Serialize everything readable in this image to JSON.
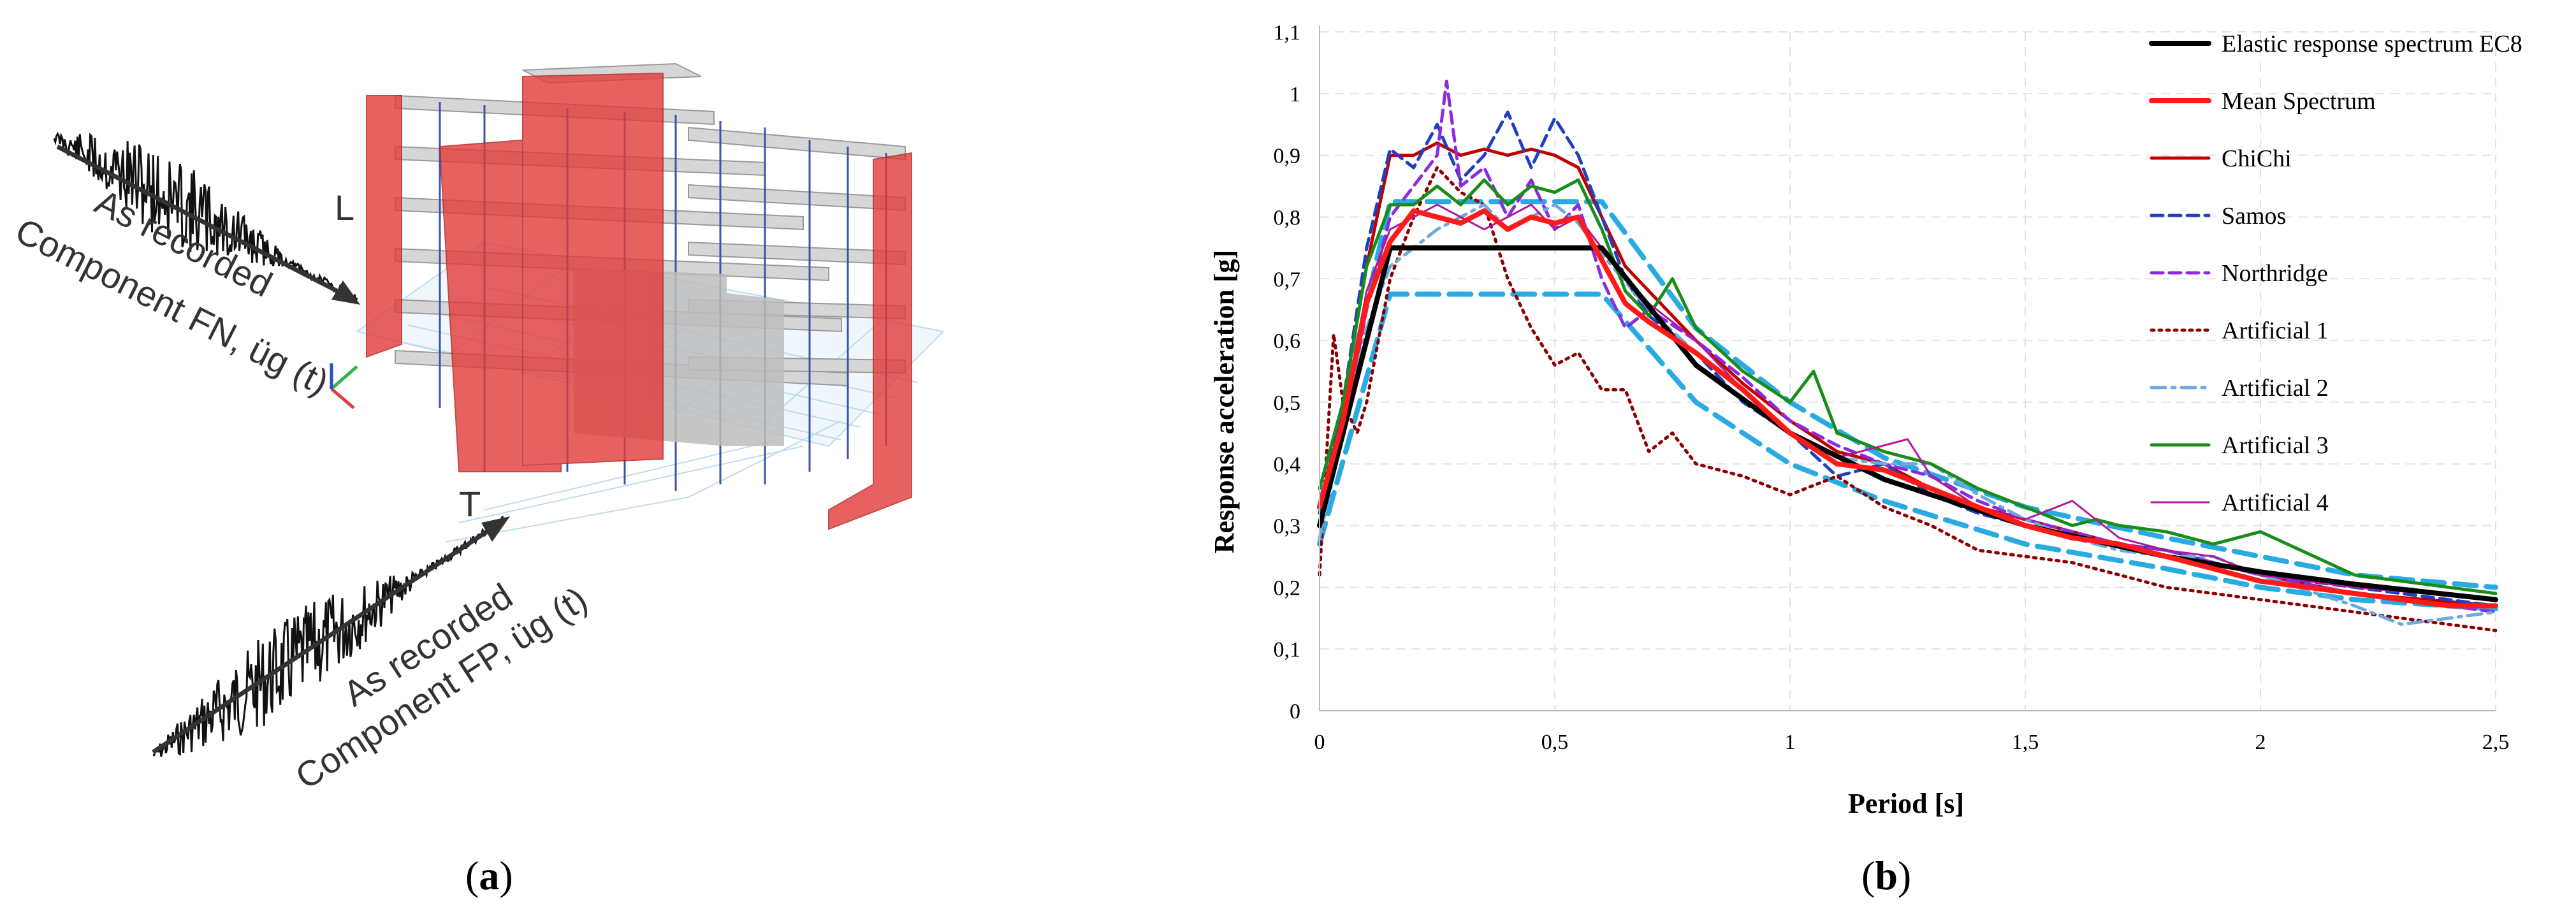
{
  "panel_labels": {
    "a": "a",
    "b": "b"
  },
  "illustration": {
    "label_l": "L",
    "label_t": "T",
    "fn_line1": "As recorded",
    "fn_line2": "Component FN, üg (t)",
    "fp_line1": "As recorded",
    "fp_line2": "Component FP, üg (t)"
  },
  "chart_data": {
    "type": "line",
    "title": "",
    "xlabel": "Period [s]",
    "ylabel": "Response acceleration [g]",
    "xlim": [
      0,
      2.5
    ],
    "ylim": [
      0,
      1.1
    ],
    "xticks": [
      0,
      0.5,
      1,
      1.5,
      2,
      2.5
    ],
    "xtick_labels": [
      "0",
      "0,5",
      "1",
      "1,5",
      "2",
      "2,5"
    ],
    "yticks": [
      0,
      0.1,
      0.2,
      0.3,
      0.4,
      0.5,
      0.6,
      0.7,
      0.8,
      0.9,
      1.0,
      1.1
    ],
    "ytick_labels": [
      "0",
      "0,1",
      "0,2",
      "0,3",
      "0,4",
      "0,5",
      "0,6",
      "0,7",
      "0,8",
      "0,9",
      "1",
      "1,1"
    ],
    "grid": true,
    "legend_position": "top-right",
    "series": [
      {
        "name": "Elastic response spectrum EC8",
        "color": "#000000",
        "style": "solid",
        "weight": "thick",
        "x": [
          0,
          0.15,
          0.6,
          0.8,
          1.0,
          1.2,
          1.5,
          1.8,
          2.0,
          2.2,
          2.5
        ],
        "y": [
          0.3,
          0.75,
          0.75,
          0.56,
          0.45,
          0.375,
          0.3,
          0.25,
          0.225,
          0.205,
          0.18
        ]
      },
      {
        "name": "Mean Spectrum",
        "color": "#ff1a1a",
        "style": "solid",
        "weight": "thick",
        "x": [
          0,
          0.05,
          0.1,
          0.15,
          0.2,
          0.25,
          0.3,
          0.35,
          0.4,
          0.45,
          0.5,
          0.55,
          0.6,
          0.65,
          0.7,
          0.8,
          0.9,
          1.0,
          1.1,
          1.2,
          1.3,
          1.4,
          1.5,
          1.6,
          1.7,
          1.8,
          1.9,
          2.0,
          2.1,
          2.2,
          2.3,
          2.4,
          2.5
        ],
        "y": [
          0.33,
          0.47,
          0.66,
          0.76,
          0.81,
          0.8,
          0.79,
          0.81,
          0.78,
          0.8,
          0.79,
          0.8,
          0.73,
          0.66,
          0.63,
          0.58,
          0.52,
          0.45,
          0.4,
          0.39,
          0.36,
          0.33,
          0.3,
          0.28,
          0.27,
          0.25,
          0.23,
          0.21,
          0.2,
          0.19,
          0.18,
          0.17,
          0.17
        ]
      },
      {
        "name": "ChiChi",
        "color": "#c00000",
        "style": "solid",
        "weight": "medium",
        "x": [
          0,
          0.05,
          0.1,
          0.15,
          0.2,
          0.25,
          0.3,
          0.35,
          0.4,
          0.45,
          0.5,
          0.55,
          0.6,
          0.65,
          0.7,
          0.8,
          0.9,
          1.0,
          1.1,
          1.2,
          1.3,
          1.4,
          1.5,
          1.6,
          1.7,
          1.8,
          1.9,
          2.0,
          2.2,
          2.5
        ],
        "y": [
          0.3,
          0.5,
          0.72,
          0.9,
          0.9,
          0.92,
          0.9,
          0.91,
          0.9,
          0.91,
          0.9,
          0.88,
          0.8,
          0.72,
          0.68,
          0.6,
          0.53,
          0.47,
          0.42,
          0.4,
          0.36,
          0.33,
          0.31,
          0.29,
          0.27,
          0.25,
          0.24,
          0.22,
          0.19,
          0.17
        ]
      },
      {
        "name": "Samos",
        "color": "#1f3fbf",
        "style": "dashed",
        "weight": "medium",
        "x": [
          0,
          0.05,
          0.1,
          0.15,
          0.2,
          0.25,
          0.3,
          0.35,
          0.4,
          0.45,
          0.5,
          0.55,
          0.6,
          0.65,
          0.7,
          0.8,
          0.9,
          1.0,
          1.1,
          1.2,
          1.3,
          1.4,
          1.5,
          1.6,
          1.7,
          1.8,
          1.9,
          2.0,
          2.2,
          2.5
        ],
        "y": [
          0.32,
          0.5,
          0.75,
          0.91,
          0.88,
          0.95,
          0.86,
          0.9,
          0.97,
          0.88,
          0.96,
          0.9,
          0.8,
          0.7,
          0.64,
          0.58,
          0.5,
          0.45,
          0.38,
          0.4,
          0.35,
          0.32,
          0.3,
          0.28,
          0.27,
          0.26,
          0.24,
          0.22,
          0.2,
          0.17
        ]
      },
      {
        "name": "Northridge",
        "color": "#8a2be2",
        "style": "dashed",
        "weight": "medium",
        "x": [
          0,
          0.05,
          0.1,
          0.15,
          0.2,
          0.25,
          0.27,
          0.3,
          0.35,
          0.4,
          0.45,
          0.5,
          0.55,
          0.6,
          0.65,
          0.7,
          0.8,
          0.9,
          1.0,
          1.1,
          1.2,
          1.3,
          1.4,
          1.5,
          1.6,
          1.7,
          1.8,
          1.9,
          2.0,
          2.2,
          2.5
        ],
        "y": [
          0.3,
          0.45,
          0.65,
          0.8,
          0.85,
          0.9,
          1.02,
          0.85,
          0.88,
          0.8,
          0.86,
          0.78,
          0.82,
          0.7,
          0.62,
          0.65,
          0.6,
          0.54,
          0.47,
          0.43,
          0.4,
          0.38,
          0.34,
          0.31,
          0.29,
          0.27,
          0.26,
          0.24,
          0.22,
          0.19,
          0.16
        ]
      },
      {
        "name": "Artificial 1",
        "color": "#8b0000",
        "style": "dotted",
        "weight": "medium",
        "x": [
          0,
          0.03,
          0.05,
          0.08,
          0.1,
          0.15,
          0.2,
          0.25,
          0.3,
          0.35,
          0.4,
          0.45,
          0.5,
          0.55,
          0.6,
          0.65,
          0.7,
          0.75,
          0.8,
          0.9,
          1.0,
          1.1,
          1.2,
          1.3,
          1.4,
          1.5,
          1.6,
          1.7,
          1.8,
          1.9,
          2.0,
          2.2,
          2.4,
          2.5
        ],
        "y": [
          0.22,
          0.61,
          0.5,
          0.45,
          0.5,
          0.7,
          0.8,
          0.88,
          0.84,
          0.82,
          0.7,
          0.62,
          0.56,
          0.58,
          0.52,
          0.52,
          0.42,
          0.45,
          0.4,
          0.38,
          0.35,
          0.38,
          0.33,
          0.3,
          0.26,
          0.25,
          0.24,
          0.22,
          0.2,
          0.19,
          0.18,
          0.16,
          0.14,
          0.13
        ]
      },
      {
        "name": "Artificial 2",
        "color": "#6fa8dc",
        "style": "dashdot",
        "weight": "medium",
        "x": [
          0,
          0.05,
          0.1,
          0.15,
          0.2,
          0.25,
          0.3,
          0.35,
          0.4,
          0.45,
          0.5,
          0.55,
          0.6,
          0.7,
          0.8,
          0.9,
          1.0,
          1.1,
          1.2,
          1.3,
          1.4,
          1.5,
          1.6,
          1.7,
          1.8,
          1.9,
          2.0,
          2.2,
          2.3,
          2.5
        ],
        "y": [
          0.28,
          0.45,
          0.62,
          0.72,
          0.75,
          0.78,
          0.8,
          0.82,
          0.78,
          0.8,
          0.82,
          0.79,
          0.74,
          0.65,
          0.58,
          0.52,
          0.45,
          0.41,
          0.4,
          0.4,
          0.35,
          0.31,
          0.28,
          0.26,
          0.25,
          0.25,
          0.22,
          0.17,
          0.14,
          0.16
        ]
      },
      {
        "name": "Artificial 3",
        "color": "#1a8c1a",
        "style": "solid",
        "weight": "medium",
        "x": [
          0,
          0.05,
          0.1,
          0.15,
          0.2,
          0.25,
          0.3,
          0.35,
          0.4,
          0.45,
          0.5,
          0.55,
          0.6,
          0.65,
          0.7,
          0.75,
          0.8,
          0.9,
          1.0,
          1.05,
          1.1,
          1.2,
          1.3,
          1.4,
          1.5,
          1.6,
          1.65,
          1.7,
          1.8,
          1.9,
          2.0,
          2.2,
          2.5
        ],
        "y": [
          0.36,
          0.5,
          0.72,
          0.82,
          0.82,
          0.85,
          0.82,
          0.86,
          0.82,
          0.85,
          0.84,
          0.86,
          0.78,
          0.68,
          0.64,
          0.7,
          0.62,
          0.55,
          0.5,
          0.55,
          0.45,
          0.42,
          0.4,
          0.36,
          0.33,
          0.3,
          0.31,
          0.3,
          0.29,
          0.27,
          0.29,
          0.22,
          0.19
        ]
      },
      {
        "name": "Artificial 4",
        "color": "#b0189a",
        "style": "solid",
        "weight": "thin",
        "x": [
          0,
          0.05,
          0.1,
          0.15,
          0.2,
          0.25,
          0.3,
          0.35,
          0.4,
          0.45,
          0.5,
          0.55,
          0.6,
          0.7,
          0.8,
          0.9,
          1.0,
          1.1,
          1.2,
          1.25,
          1.3,
          1.4,
          1.5,
          1.6,
          1.7,
          1.8,
          1.9,
          2.0,
          2.2,
          2.5
        ],
        "y": [
          0.3,
          0.48,
          0.68,
          0.78,
          0.8,
          0.82,
          0.8,
          0.78,
          0.8,
          0.82,
          0.78,
          0.8,
          0.75,
          0.66,
          0.6,
          0.52,
          0.45,
          0.41,
          0.43,
          0.44,
          0.38,
          0.33,
          0.31,
          0.34,
          0.28,
          0.26,
          0.25,
          0.22,
          0.2,
          0.18
        ]
      },
      {
        "name": "Target (dashed light blue)",
        "legend": false,
        "color": "#29abe2",
        "style": "longdash",
        "weight": "thick",
        "x": [
          0,
          0.15,
          0.6,
          0.8,
          1.0,
          1.2,
          1.5,
          1.8,
          2.0,
          2.2,
          2.5
        ],
        "y": [
          0.27,
          0.675,
          0.675,
          0.5,
          0.4,
          0.34,
          0.27,
          0.23,
          0.2,
          0.18,
          0.165
        ]
      },
      {
        "name": "Upper band (dashed light blue)",
        "legend": false,
        "color": "#29abe2",
        "style": "longdash",
        "weight": "thick",
        "x": [
          0,
          0.15,
          0.6,
          0.8,
          1.0,
          1.2,
          1.5,
          1.8,
          2.0,
          2.2,
          2.5
        ],
        "y": [
          0.33,
          0.825,
          0.825,
          0.62,
          0.5,
          0.41,
          0.33,
          0.28,
          0.25,
          0.22,
          0.2
        ]
      }
    ]
  }
}
